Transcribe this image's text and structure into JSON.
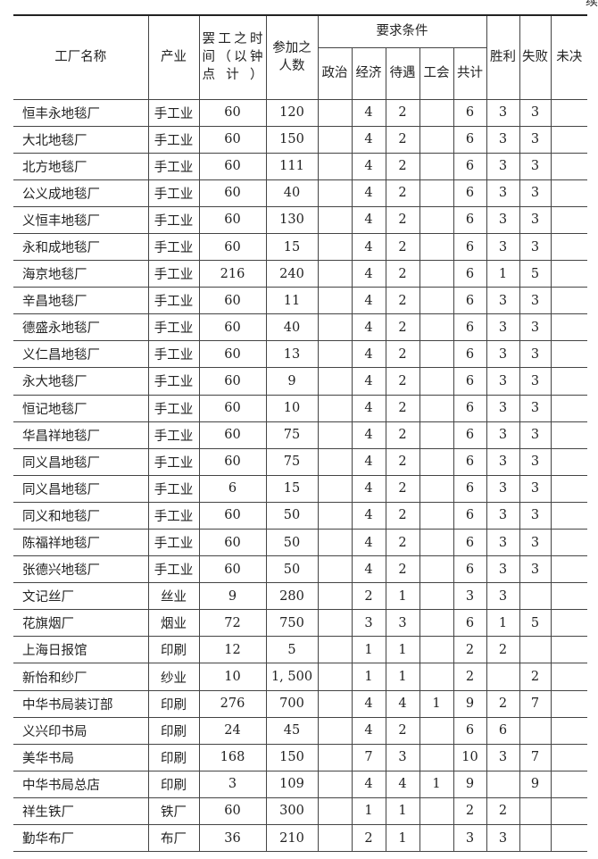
{
  "continued_label": "续表",
  "headers": {
    "name": "工厂名称",
    "industry": "产业",
    "duration": "罢工之时间（以钟点计）",
    "participants": "参加之人数",
    "demands": "要求条件",
    "political": "政治",
    "economic": "经济",
    "treatment": "待遇",
    "union": "工会",
    "total": "共计",
    "win": "胜利",
    "loss": "失败",
    "pending": "未决"
  },
  "rows": [
    [
      "恒丰永地毯厂",
      "手工业",
      "60",
      "120",
      "",
      "4",
      "2",
      "",
      "6",
      "3",
      "3",
      ""
    ],
    [
      "大北地毯厂",
      "手工业",
      "60",
      "150",
      "",
      "4",
      "2",
      "",
      "6",
      "3",
      "3",
      ""
    ],
    [
      "北方地毯厂",
      "手工业",
      "60",
      "111",
      "",
      "4",
      "2",
      "",
      "6",
      "3",
      "3",
      ""
    ],
    [
      "公义成地毯厂",
      "手工业",
      "60",
      "40",
      "",
      "4",
      "2",
      "",
      "6",
      "3",
      "3",
      ""
    ],
    [
      "义恒丰地毯厂",
      "手工业",
      "60",
      "130",
      "",
      "4",
      "2",
      "",
      "6",
      "3",
      "3",
      ""
    ],
    [
      "永和成地毯厂",
      "手工业",
      "60",
      "15",
      "",
      "4",
      "2",
      "",
      "6",
      "3",
      "3",
      ""
    ],
    [
      "海京地毯厂",
      "手工业",
      "216",
      "240",
      "",
      "4",
      "2",
      "",
      "6",
      "1",
      "5",
      ""
    ],
    [
      "辛昌地毯厂",
      "手工业",
      "60",
      "11",
      "",
      "4",
      "2",
      "",
      "6",
      "3",
      "3",
      ""
    ],
    [
      "德盛永地毯厂",
      "手工业",
      "60",
      "40",
      "",
      "4",
      "2",
      "",
      "6",
      "3",
      "3",
      ""
    ],
    [
      "义仁昌地毯厂",
      "手工业",
      "60",
      "13",
      "",
      "4",
      "2",
      "",
      "6",
      "3",
      "3",
      ""
    ],
    [
      "永大地毯厂",
      "手工业",
      "60",
      "9",
      "",
      "4",
      "2",
      "",
      "6",
      "3",
      "3",
      ""
    ],
    [
      "恒记地毯厂",
      "手工业",
      "60",
      "10",
      "",
      "4",
      "2",
      "",
      "6",
      "3",
      "3",
      ""
    ],
    [
      "华昌祥地毯厂",
      "手工业",
      "60",
      "75",
      "",
      "4",
      "2",
      "",
      "6",
      "3",
      "3",
      ""
    ],
    [
      "同义昌地毯厂",
      "手工业",
      "60",
      "75",
      "",
      "4",
      "2",
      "",
      "6",
      "3",
      "3",
      ""
    ],
    [
      "同义昌地毯厂",
      "手工业",
      "6",
      "15",
      "",
      "4",
      "2",
      "",
      "6",
      "3",
      "3",
      ""
    ],
    [
      "同义和地毯厂",
      "手工业",
      "60",
      "50",
      "",
      "4",
      "2",
      "",
      "6",
      "3",
      "3",
      ""
    ],
    [
      "陈福祥地毯厂",
      "手工业",
      "60",
      "50",
      "",
      "4",
      "2",
      "",
      "6",
      "3",
      "3",
      ""
    ],
    [
      "张德兴地毯厂",
      "手工业",
      "60",
      "50",
      "",
      "4",
      "2",
      "",
      "6",
      "3",
      "3",
      ""
    ],
    [
      "文记丝厂",
      "丝业",
      "9",
      "280",
      "",
      "2",
      "1",
      "",
      "3",
      "3",
      "",
      ""
    ],
    [
      "花旗烟厂",
      "烟业",
      "72",
      "750",
      "",
      "3",
      "3",
      "",
      "6",
      "1",
      "5",
      ""
    ],
    [
      "上海日报馆",
      "印刷",
      "12",
      "5",
      "",
      "1",
      "1",
      "",
      "2",
      "2",
      "",
      ""
    ],
    [
      "新怡和纱厂",
      "纱业",
      "10",
      "1, 500",
      "",
      "1",
      "1",
      "",
      "2",
      "",
      "2",
      ""
    ],
    [
      "中华书局装订部",
      "印刷",
      "276",
      "700",
      "",
      "4",
      "4",
      "1",
      "9",
      "2",
      "7",
      ""
    ],
    [
      "义兴印书局",
      "印刷",
      "24",
      "45",
      "",
      "4",
      "2",
      "",
      "6",
      "6",
      "",
      ""
    ],
    [
      "美华书局",
      "印刷",
      "168",
      "150",
      "",
      "7",
      "3",
      "",
      "10",
      "3",
      "7",
      ""
    ],
    [
      "中华书局总店",
      "印刷",
      "3",
      "109",
      "",
      "4",
      "4",
      "1",
      "9",
      "",
      "9",
      ""
    ],
    [
      "祥生铁厂",
      "铁厂",
      "60",
      "300",
      "",
      "1",
      "1",
      "",
      "2",
      "2",
      "",
      ""
    ],
    [
      "勤华布厂",
      "布厂",
      "36",
      "210",
      "",
      "2",
      "1",
      "",
      "3",
      "3",
      "",
      ""
    ]
  ]
}
